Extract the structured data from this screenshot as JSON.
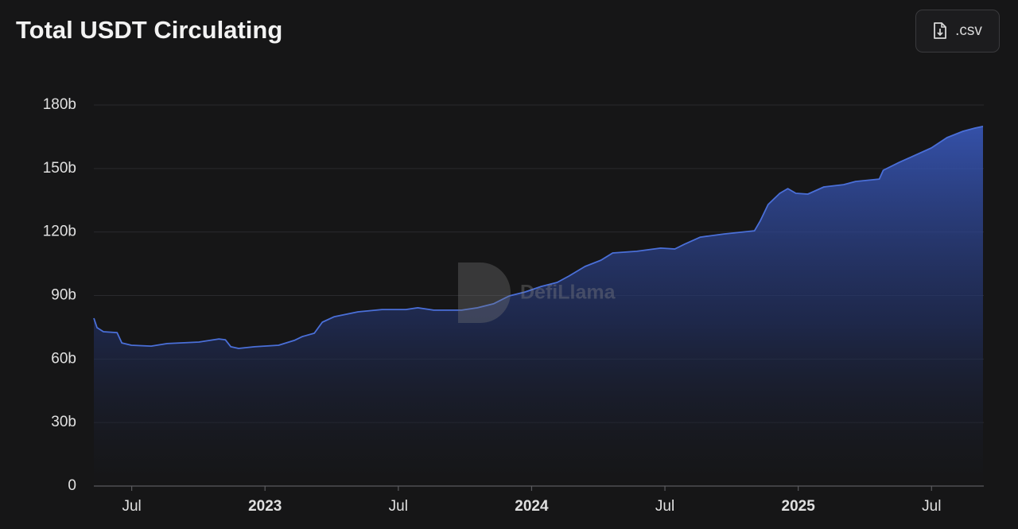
{
  "title": "Total USDT Circulating",
  "toolbar": {
    "export_label": ".csv"
  },
  "watermark": "DefiLlama",
  "chart_data": {
    "type": "area",
    "color": "#4a6fd8",
    "grid": true,
    "x": [
      2022.358,
      2022.37,
      2022.394,
      2022.445,
      2022.463,
      2022.499,
      2022.573,
      2022.633,
      2022.752,
      2022.827,
      2022.851,
      2022.872,
      2022.901,
      2022.961,
      2023.051,
      2023.11,
      2023.14,
      2023.185,
      2023.215,
      2023.26,
      2023.349,
      2023.439,
      2023.528,
      2023.573,
      2023.633,
      2023.737,
      2023.797,
      2023.857,
      2023.916,
      2023.976,
      2024.036,
      2024.096,
      2024.14,
      2024.2,
      2024.26,
      2024.304,
      2024.394,
      2024.484,
      2024.537,
      2024.573,
      2024.633,
      2024.722,
      2024.836,
      2024.857,
      2024.887,
      2024.931,
      2024.961,
      2024.991,
      2025.036,
      2025.096,
      2025.17,
      2025.215,
      2025.304,
      2025.319,
      2025.379,
      2025.439,
      2025.499,
      2025.558,
      2025.618,
      2025.663,
      2025.693
    ],
    "values": [
      79.3,
      74.8,
      72.9,
      72.5,
      67.6,
      66.5,
      66.1,
      67.3,
      68.0,
      69.5,
      69.1,
      65.8,
      65.0,
      65.8,
      66.5,
      68.8,
      70.6,
      72.2,
      77.4,
      80.0,
      82.3,
      83.4,
      83.4,
      84.2,
      83.1,
      83.1,
      84.2,
      86.1,
      89.8,
      91.7,
      94.3,
      96.2,
      99.2,
      103.7,
      106.7,
      110.1,
      110.9,
      112.4,
      112.0,
      114.2,
      117.6,
      119.1,
      120.6,
      125.1,
      133.0,
      138.3,
      140.5,
      138.3,
      137.9,
      141.3,
      142.4,
      143.9,
      145.0,
      149.2,
      152.9,
      156.3,
      159.7,
      164.6,
      167.6,
      169.1,
      169.9
    ],
    "xlim": [
      2022.358,
      2025.696
    ],
    "xticks": [
      {
        "value": 2022.5,
        "label": "Jul"
      },
      2023,
      {
        "value": 2023.5,
        "label": "Jul"
      },
      2024,
      {
        "value": 2024.5,
        "label": "Jul"
      },
      2025,
      {
        "value": 2025.5,
        "label": "Jul"
      }
    ],
    "ylim": [
      0,
      180
    ],
    "yticks": [
      0,
      {
        "value": 30,
        "label": "30b"
      },
      {
        "value": 60,
        "label": "60b"
      },
      {
        "value": 90,
        "label": "90b"
      },
      {
        "value": 120,
        "label": "120b"
      },
      {
        "value": 150,
        "label": "150b"
      },
      {
        "value": 180,
        "label": "180b"
      }
    ]
  }
}
